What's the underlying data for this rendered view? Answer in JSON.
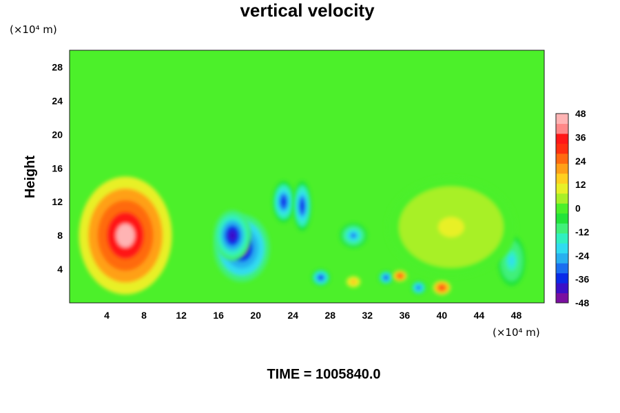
{
  "chart_data": {
    "type": "heatmap",
    "title": "vertical velocity",
    "ylabel": "Height",
    "x_unit_label": "(×10⁴ m)",
    "y_unit_label": "(×10⁴ m)",
    "footer": "TIME = 1005840.0",
    "xlim": [
      0,
      51
    ],
    "ylim": [
      0,
      30
    ],
    "x_ticks": [
      4,
      8,
      12,
      16,
      20,
      24,
      28,
      32,
      36,
      40,
      44,
      48
    ],
    "y_ticks": [
      4,
      8,
      12,
      16,
      20,
      24,
      28
    ],
    "colorbar": {
      "min": -48,
      "max": 48,
      "ticks": [
        48,
        36,
        24,
        12,
        0,
        -12,
        -24,
        -36,
        -48
      ],
      "colors": [
        "#7a0fa0",
        "#3b10c8",
        "#0a2ae8",
        "#1a6ef0",
        "#28b0f0",
        "#30dcf0",
        "#30f0c0",
        "#40f07a",
        "#22e43a",
        "#4cf02a",
        "#a8f028",
        "#e8f028",
        "#ffd020",
        "#ffa018",
        "#ff6a10",
        "#ff3010",
        "#ff1818",
        "#ff8888",
        "#ffb4b4"
      ]
    },
    "features": [
      {
        "x": 6,
        "y": 8,
        "rx": 5,
        "ry": 7,
        "value": 48
      },
      {
        "x": 18.5,
        "y": 6.5,
        "rx": 3,
        "ry": 4,
        "value": -48
      },
      {
        "x": 17.5,
        "y": 8,
        "rx": 2,
        "ry": 3,
        "value": -44
      },
      {
        "x": 23,
        "y": 12,
        "rx": 1.2,
        "ry": 2.5,
        "value": -40
      },
      {
        "x": 25,
        "y": 11.5,
        "rx": 1,
        "ry": 3,
        "value": -38
      },
      {
        "x": 27,
        "y": 3,
        "rx": 1,
        "ry": 1,
        "value": -40
      },
      {
        "x": 30.5,
        "y": 8,
        "rx": 1.5,
        "ry": 1.5,
        "value": -30
      },
      {
        "x": 34,
        "y": 3,
        "rx": 0.8,
        "ry": 0.8,
        "value": -40
      },
      {
        "x": 35.5,
        "y": 3.2,
        "rx": 0.8,
        "ry": 0.7,
        "value": 34
      },
      {
        "x": 37.5,
        "y": 1.8,
        "rx": 0.8,
        "ry": 0.8,
        "value": -36
      },
      {
        "x": 40,
        "y": 1.8,
        "rx": 1,
        "ry": 0.9,
        "value": 36
      },
      {
        "x": 30.5,
        "y": 2.5,
        "rx": 0.8,
        "ry": 0.7,
        "value": 22
      },
      {
        "x": 47.5,
        "y": 5,
        "rx": 1.5,
        "ry": 3,
        "value": -22
      },
      {
        "x": 41,
        "y": 9,
        "rx": 7,
        "ry": 6,
        "value": 8
      }
    ]
  }
}
